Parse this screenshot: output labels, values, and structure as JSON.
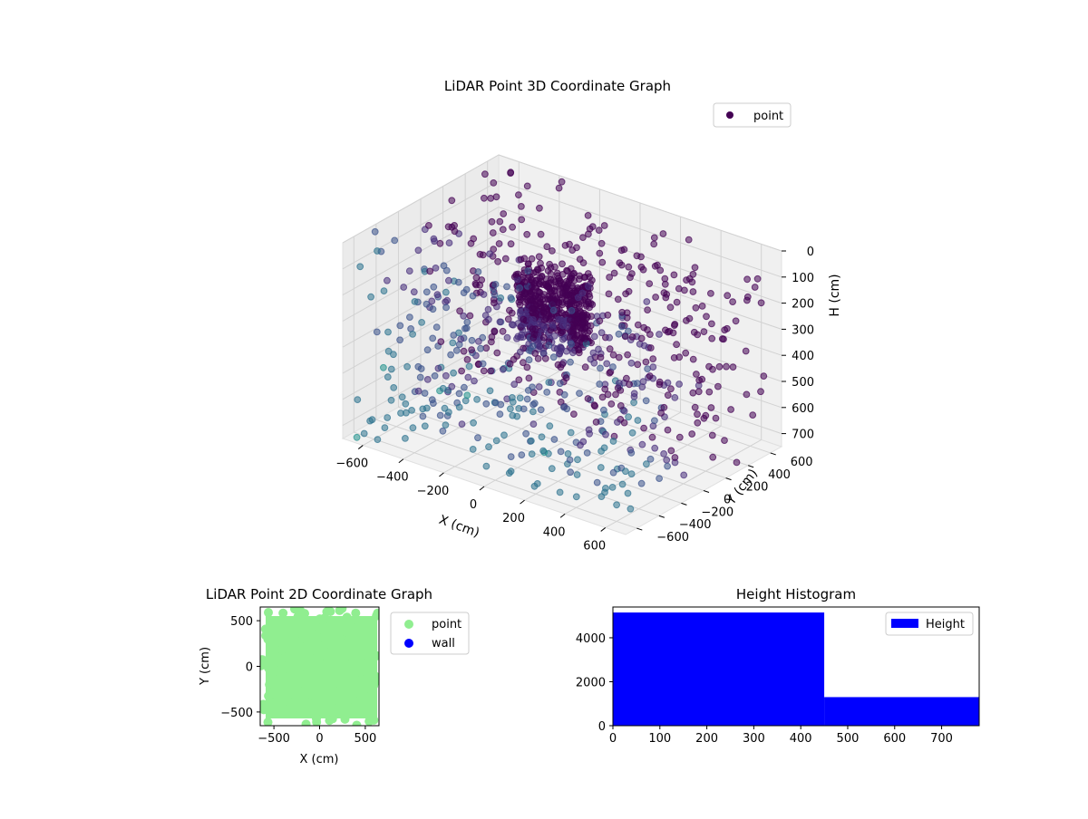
{
  "chart_data": [
    {
      "type": "scatter",
      "title": "LiDAR Point 3D Coordinate Graph",
      "xlabel": "X (cm)",
      "ylabel": "Y (cm)",
      "zlabel": "H (cm)",
      "xlim": [
        -700,
        700
      ],
      "ylim": [
        -700,
        700
      ],
      "zlim": [
        750,
        0
      ],
      "xticks": [
        "−600",
        "−400",
        "−200",
        "0",
        "200",
        "400",
        "600"
      ],
      "yticks": [
        "−600",
        "−400",
        "−200",
        "0",
        "200",
        "400",
        "600"
      ],
      "zticks": [
        "0",
        "100",
        "200",
        "300",
        "400",
        "500",
        "600",
        "700"
      ],
      "legend": [
        {
          "label": "point",
          "color": "#440154"
        }
      ],
      "legend_position": "top-right",
      "grid": true,
      "colormap": "viridis",
      "series": [
        {
          "name": "point"
        }
      ]
    },
    {
      "type": "scatter",
      "title": "LiDAR Point 2D Coordinate Graph",
      "xlabel": "X (cm)",
      "ylabel": "Y (cm)",
      "xlim": [
        -650,
        650
      ],
      "ylim": [
        -650,
        650
      ],
      "xticks": [
        "−500",
        "0",
        "500"
      ],
      "yticks": [
        "500",
        "0",
        "−500"
      ],
      "legend": [
        {
          "label": "point",
          "color": "#90ee90"
        },
        {
          "label": "wall",
          "color": "#0000ff"
        }
      ],
      "legend_position": "outside-right",
      "series": [
        {
          "name": "point",
          "color": "#90ee90"
        },
        {
          "name": "wall",
          "color": "#0000ff"
        }
      ]
    },
    {
      "type": "bar",
      "title": "Height Histogram",
      "xlim": [
        0,
        780
      ],
      "ylim": [
        0,
        5400
      ],
      "xticks": [
        "0",
        "100",
        "200",
        "300",
        "400",
        "500",
        "600",
        "700"
      ],
      "yticks": [
        "0",
        "2000",
        "4000"
      ],
      "bins": [
        {
          "start": 0,
          "end": 450,
          "count": 5150
        },
        {
          "start": 450,
          "end": 780,
          "count": 1300
        }
      ],
      "color": "#0000ff",
      "legend": [
        {
          "label": "Height",
          "color": "#0000ff"
        }
      ],
      "legend_position": "top-right",
      "series": [
        {
          "name": "Height"
        }
      ]
    }
  ]
}
